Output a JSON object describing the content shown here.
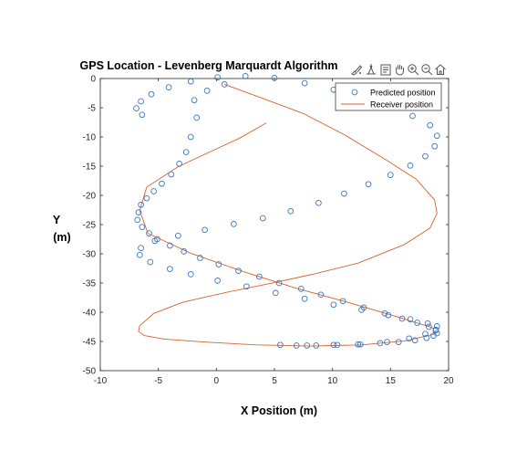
{
  "toolbar": {
    "icons": [
      "brush-icon",
      "data-tips-icon",
      "rotate-icon",
      "pan-icon",
      "zoom-in-icon",
      "zoom-out-icon",
      "home-icon"
    ]
  },
  "chart_data": {
    "type": "scatter",
    "title": "GPS Location - Levenberg Marquardt Algorithm",
    "xlabel": "X Position (m)",
    "ylabel_lines": [
      "Y",
      "(m)"
    ],
    "xlim": [
      -10,
      20
    ],
    "ylim": [
      -50,
      0
    ],
    "xticks": [
      -10,
      -5,
      0,
      5,
      10,
      15,
      20
    ],
    "yticks": [
      0,
      -5,
      -10,
      -15,
      -20,
      -25,
      -30,
      -35,
      -40,
      -45,
      -50
    ],
    "grid": false,
    "legend_position": "top-right",
    "colors": {
      "predicted": "#3a78c3",
      "receiver": "#d9622b",
      "axes": "#262626"
    },
    "series": [
      {
        "name": "Predicted position",
        "style": "markers",
        "x": [
          0.7,
          -0.8,
          -1.9,
          -1.7,
          -2.2,
          -2.6,
          -3.2,
          -3.9,
          -4.7,
          -5.4,
          -6.0,
          -6.5,
          -6.7,
          -6.8,
          -6.4,
          -5.8,
          -5.1,
          -4.0,
          -2.8,
          -1.4,
          0.2,
          1.9,
          3.7,
          5.4,
          7.3,
          9.0,
          10.9,
          12.7,
          14.5,
          16.0,
          17.3,
          18.3,
          18.9,
          19.0,
          18.7,
          18.1,
          17.1,
          15.7,
          14.1,
          12.2,
          10.4,
          8.6,
          6.9,
          5.5,
          7.8,
          10.1,
          12.4,
          14.7,
          16.6,
          18.0,
          18.9,
          19.0,
          18.2,
          16.7,
          14.8,
          12.5,
          10.1,
          7.6,
          5.1,
          2.6,
          0.1,
          -2.2,
          -4.0,
          -5.7,
          -6.6,
          -6.5,
          -5.3,
          -3.3,
          -1.0,
          1.5,
          4.0,
          6.4,
          8.8,
          11.0,
          13.1,
          15.0,
          16.7,
          18.0,
          18.8,
          19.0,
          18.4,
          16.9,
          14.9,
          12.6,
          10.1,
          7.6,
          5.0,
          2.5,
          0.1,
          -2.2,
          -4.1,
          -5.6,
          -6.5,
          -6.9,
          -6.4
        ],
        "y": [
          -1.0,
          -2.1,
          -3.7,
          -6.7,
          -10.0,
          -12.6,
          -14.6,
          -16.4,
          -18.0,
          -19.3,
          -20.5,
          -21.6,
          -22.9,
          -24.2,
          -25.4,
          -26.5,
          -27.5,
          -28.6,
          -29.6,
          -30.7,
          -31.8,
          -32.9,
          -33.9,
          -35.0,
          -36.0,
          -37.0,
          -38.1,
          -39.2,
          -40.2,
          -41.1,
          -41.8,
          -42.5,
          -43.1,
          -43.6,
          -44.0,
          -44.4,
          -44.8,
          -45.1,
          -45.3,
          -45.5,
          -45.6,
          -45.7,
          -45.7,
          -45.6,
          -45.7,
          -45.6,
          -45.5,
          -45.1,
          -44.5,
          -43.7,
          -43.0,
          -42.4,
          -41.9,
          -41.2,
          -40.5,
          -39.6,
          -38.7,
          -37.7,
          -36.7,
          -35.6,
          -34.6,
          -33.5,
          -32.6,
          -31.4,
          -30.2,
          -29.0,
          -27.8,
          -26.9,
          -25.9,
          -24.9,
          -23.9,
          -22.7,
          -21.3,
          -19.7,
          -18.1,
          -16.5,
          -14.9,
          -13.3,
          -11.6,
          -9.8,
          -8.0,
          -6.4,
          -4.8,
          -3.2,
          -1.9,
          -0.8,
          0.1,
          0.4,
          0.2,
          -0.5,
          -1.5,
          -2.7,
          -3.9,
          -5.1,
          -6.2
        ]
      },
      {
        "name": "Receiver position",
        "style": "line",
        "x": [
          0.7,
          4.0,
          7.5,
          11.0,
          14.5,
          17.2,
          18.8,
          19.0,
          18.4,
          16.2,
          12.2,
          8.1,
          4.6,
          1.1,
          -2.9,
          -5.4,
          -6.6,
          -6.7,
          -6.2,
          -4.5,
          -1.1,
          3.5,
          8.0,
          12.5,
          16.2,
          18.7,
          18.7,
          15.8,
          11.3,
          6.9,
          2.4,
          -2.2,
          -5.9,
          -6.6,
          -6.0,
          -3.3,
          -0.6,
          2.0,
          4.3
        ],
        "y": [
          -1.0,
          -3.4,
          -6.0,
          -9.6,
          -13.8,
          -17.2,
          -20.8,
          -23.1,
          -25.6,
          -28.4,
          -31.6,
          -33.6,
          -35.1,
          -36.5,
          -38.3,
          -40.2,
          -42.3,
          -43.3,
          -44.0,
          -44.6,
          -45.1,
          -45.6,
          -45.8,
          -45.6,
          -44.9,
          -43.8,
          -42.7,
          -40.9,
          -38.3,
          -35.9,
          -33.1,
          -29.9,
          -26.5,
          -22.6,
          -18.6,
          -15.1,
          -12.6,
          -10.2,
          -7.6
        ]
      }
    ]
  }
}
